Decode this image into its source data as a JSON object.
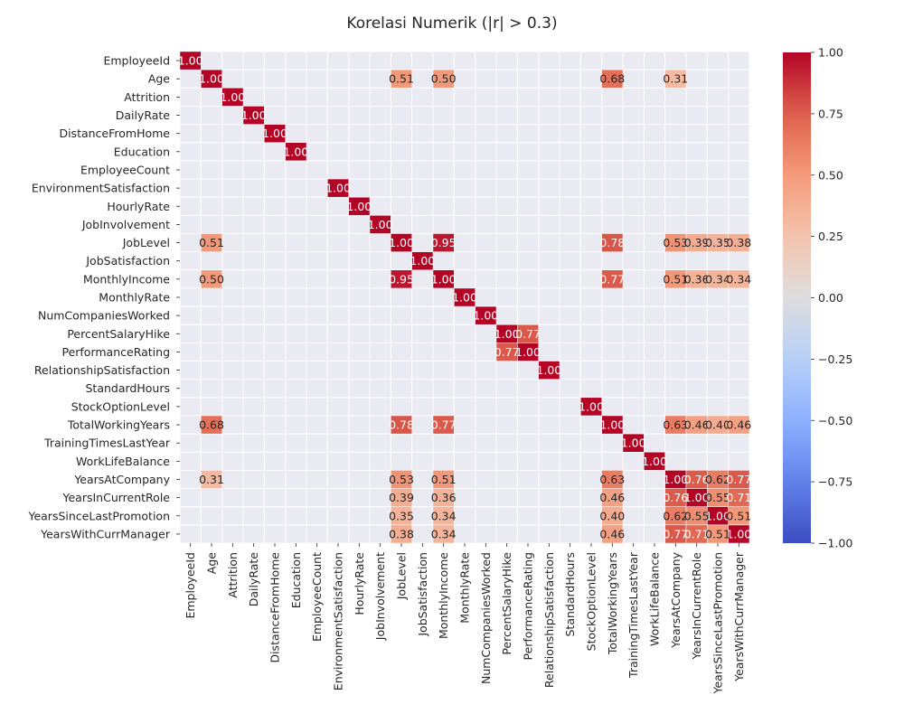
{
  "chart_data": {
    "type": "heatmap",
    "title": "Korelasi Numerik (|r| > 0.3)",
    "labels": [
      "EmployeeId",
      "Age",
      "Attrition",
      "DailyRate",
      "DistanceFromHome",
      "Education",
      "EmployeeCount",
      "EnvironmentSatisfaction",
      "HourlyRate",
      "JobInvolvement",
      "JobLevel",
      "JobSatisfaction",
      "MonthlyIncome",
      "MonthlyRate",
      "NumCompaniesWorked",
      "PercentSalaryHike",
      "PerformanceRating",
      "RelationshipSatisfaction",
      "StandardHours",
      "StockOptionLevel",
      "TotalWorkingYears",
      "TrainingTimesLastYear",
      "WorkLifeBalance",
      "YearsAtCompany",
      "YearsInCurrentRole",
      "YearsSinceLastPromotion",
      "YearsWithCurrManager"
    ],
    "threshold": 0.3,
    "cells": [
      [
        0,
        0,
        1.0
      ],
      [
        1,
        1,
        1.0
      ],
      [
        2,
        2,
        1.0
      ],
      [
        3,
        3,
        1.0
      ],
      [
        4,
        4,
        1.0
      ],
      [
        5,
        5,
        1.0
      ],
      [
        7,
        7,
        1.0
      ],
      [
        8,
        8,
        1.0
      ],
      [
        9,
        9,
        1.0
      ],
      [
        10,
        10,
        1.0
      ],
      [
        11,
        11,
        1.0
      ],
      [
        12,
        12,
        1.0
      ],
      [
        13,
        13,
        1.0
      ],
      [
        14,
        14,
        1.0
      ],
      [
        15,
        15,
        1.0
      ],
      [
        16,
        16,
        1.0
      ],
      [
        17,
        17,
        1.0
      ],
      [
        19,
        19,
        1.0
      ],
      [
        20,
        20,
        1.0
      ],
      [
        21,
        21,
        1.0
      ],
      [
        22,
        22,
        1.0
      ],
      [
        23,
        23,
        1.0
      ],
      [
        24,
        24,
        1.0
      ],
      [
        25,
        25,
        1.0
      ],
      [
        26,
        26,
        1.0
      ],
      [
        1,
        10,
        0.51
      ],
      [
        10,
        1,
        0.51
      ],
      [
        1,
        12,
        0.5
      ],
      [
        12,
        1,
        0.5
      ],
      [
        1,
        20,
        0.68
      ],
      [
        20,
        1,
        0.68
      ],
      [
        1,
        23,
        0.31
      ],
      [
        23,
        1,
        0.31
      ],
      [
        10,
        12,
        0.95
      ],
      [
        12,
        10,
        0.95
      ],
      [
        10,
        20,
        0.78
      ],
      [
        20,
        10,
        0.78
      ],
      [
        10,
        23,
        0.53
      ],
      [
        23,
        10,
        0.53
      ],
      [
        10,
        24,
        0.39
      ],
      [
        24,
        10,
        0.39
      ],
      [
        10,
        25,
        0.35
      ],
      [
        25,
        10,
        0.35
      ],
      [
        10,
        26,
        0.38
      ],
      [
        26,
        10,
        0.38
      ],
      [
        12,
        20,
        0.77
      ],
      [
        20,
        12,
        0.77
      ],
      [
        12,
        23,
        0.51
      ],
      [
        23,
        12,
        0.51
      ],
      [
        12,
        24,
        0.36
      ],
      [
        24,
        12,
        0.36
      ],
      [
        12,
        25,
        0.34
      ],
      [
        25,
        12,
        0.34
      ],
      [
        12,
        26,
        0.34
      ],
      [
        26,
        12,
        0.34
      ],
      [
        15,
        16,
        0.77
      ],
      [
        16,
        15,
        0.77
      ],
      [
        20,
        23,
        0.63
      ],
      [
        23,
        20,
        0.63
      ],
      [
        20,
        24,
        0.46
      ],
      [
        24,
        20,
        0.46
      ],
      [
        20,
        25,
        0.4
      ],
      [
        25,
        20,
        0.4
      ],
      [
        20,
        26,
        0.46
      ],
      [
        26,
        20,
        0.46
      ],
      [
        23,
        24,
        0.76
      ],
      [
        24,
        23,
        0.76
      ],
      [
        23,
        25,
        0.62
      ],
      [
        25,
        23,
        0.62
      ],
      [
        23,
        26,
        0.77
      ],
      [
        26,
        23,
        0.77
      ],
      [
        24,
        25,
        0.55
      ],
      [
        25,
        24,
        0.55
      ],
      [
        24,
        26,
        0.71
      ],
      [
        26,
        24,
        0.71
      ],
      [
        25,
        26,
        0.51
      ],
      [
        26,
        25,
        0.51
      ]
    ],
    "value_format": "0.00",
    "colorbar": {
      "colormap": "coolwarm",
      "vmin": -1.0,
      "vmax": 1.0,
      "ticks": [
        "1.00",
        "0.75",
        "0.50",
        "0.25",
        "0.00",
        "−0.25",
        "−0.50",
        "−0.75",
        "−1.00"
      ]
    },
    "grid": true
  }
}
